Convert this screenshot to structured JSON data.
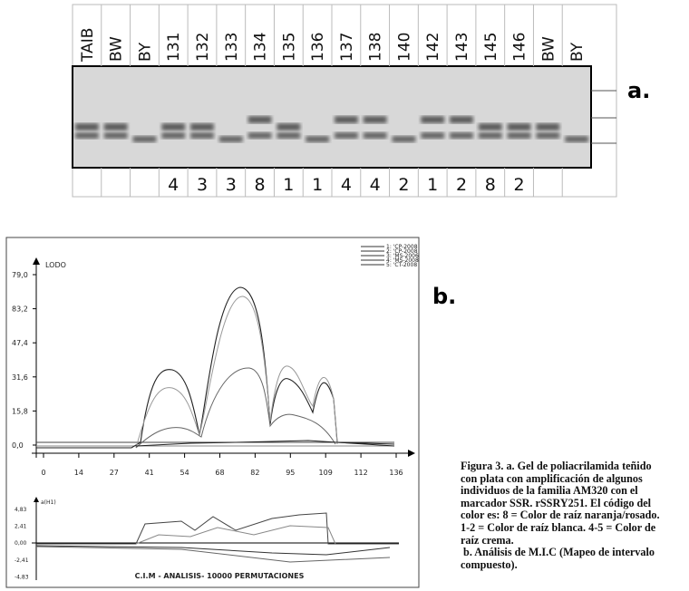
{
  "figure_a": {
    "label": "a.",
    "lanes": [
      "TAIB",
      "BW",
      "BY",
      "131",
      "132",
      "133",
      "134",
      "135",
      "136",
      "137",
      "138",
      "140",
      "142",
      "143",
      "145",
      "146",
      "BW",
      "BY"
    ],
    "scores": [
      null,
      null,
      null,
      "4",
      "3",
      "3",
      "8",
      "1",
      "1",
      "4",
      "4",
      "2",
      "1",
      "2",
      "8",
      "2",
      null,
      null
    ]
  },
  "figure_b": {
    "label": "b.",
    "lod_axis_label": "LODO",
    "lod_yticks": [
      "79,0",
      "83,2",
      "47,4",
      "31,6",
      "15,8",
      "0,0"
    ],
    "xticks": [
      "0",
      "14",
      "27",
      "41",
      "54",
      "68",
      "82",
      "95",
      "109",
      "112",
      "136"
    ],
    "legend": [
      "1: 'CP-2008",
      "2: 'CP-2008",
      "3: 'MS-2006",
      "4: 'MS-2008",
      "5: 'CT-2008"
    ],
    "effect_axis_label": "a(H1)",
    "effect_yticks": [
      "4,83",
      "2,41",
      "0,00",
      "-2,41",
      "-4,83"
    ],
    "footer": "C.I.M - ANALISIS- 10000 PERMUTACIONES"
  },
  "caption": [
    "Figura 3. a. Gel de poliacrilamida teñido",
    "con plata con amplificación de algunos",
    "individuos de la familia AM320 con el",
    "marcador SSR. rSSRY251. El código del",
    "color es: 8 = Color de raíz naranja/rosado.",
    "1-2 = Color de raíz blanca. 4-5 = Color de",
    "raíz crema.",
    " b. Análisis de M.I.C (Mapeo de intervalo",
    "compuesto)."
  ]
}
